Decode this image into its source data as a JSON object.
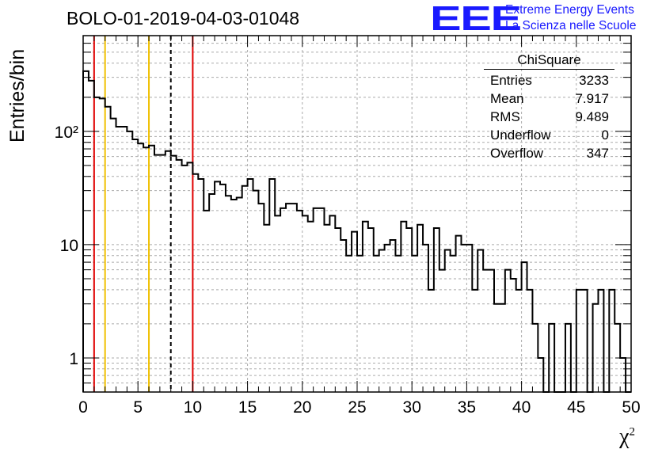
{
  "title": "BOLO-01-2019-04-03-01048",
  "logo": {
    "mark": "EEE",
    "line1": "Extreme Energy Events",
    "line2": "La Scienza nelle Scuole",
    "color": "#1a1aff"
  },
  "stats": {
    "name": "ChiSquare",
    "rows": [
      {
        "label": "Entries",
        "value": "3233"
      },
      {
        "label": "Mean",
        "value": "7.917"
      },
      {
        "label": "RMS",
        "value": "9.489"
      },
      {
        "label": "Underflow",
        "value": "0"
      },
      {
        "label": "Overflow",
        "value": "347"
      }
    ]
  },
  "chart_data": {
    "type": "histogram",
    "ylabel": "Entries/bin",
    "xlabel": "χ",
    "xlabel_sup": "2",
    "xlim": [
      0,
      50
    ],
    "ylim": [
      0.5,
      700
    ],
    "yscale": "log",
    "grid": true,
    "x_ticks": [
      0,
      5,
      10,
      15,
      20,
      25,
      30,
      35,
      40,
      45,
      50
    ],
    "y_tick_labels": [
      {
        "value": 1,
        "label": "1"
      },
      {
        "value": 10,
        "label": "10"
      },
      {
        "value": 100,
        "label": "10²"
      }
    ],
    "bin_width": 0.5,
    "bin_start": 0,
    "counts": [
      340,
      280,
      200,
      195,
      165,
      130,
      110,
      110,
      100,
      85,
      78,
      72,
      75,
      62,
      62,
      67,
      61,
      56,
      50,
      53,
      42,
      38,
      20,
      28,
      36,
      34,
      27,
      25,
      26,
      33,
      38,
      30,
      23,
      15,
      38,
      18,
      21,
      23,
      23,
      20,
      18,
      16,
      21,
      21,
      15,
      18,
      14,
      11,
      8,
      13,
      8,
      16,
      14,
      8,
      9,
      10,
      11,
      8,
      16,
      14,
      8,
      15,
      10,
      4,
      14,
      6,
      9,
      8,
      12,
      10,
      10,
      4,
      9,
      6,
      6,
      3,
      3,
      6,
      5,
      4,
      7,
      4,
      2,
      1,
      0.5,
      2,
      0.5,
      0.5,
      2,
      0.5,
      4,
      4,
      0.5,
      3,
      4,
      0.5,
      4,
      2,
      1,
      0.5
    ],
    "vertical_lines": [
      {
        "x": 1,
        "color": "#e00000",
        "style": "solid"
      },
      {
        "x": 2,
        "color": "#f0c000",
        "style": "solid"
      },
      {
        "x": 6,
        "color": "#f0c000",
        "style": "solid"
      },
      {
        "x": 8,
        "color": "#000000",
        "style": "dashed"
      },
      {
        "x": 10,
        "color": "#e00000",
        "style": "solid"
      }
    ]
  }
}
